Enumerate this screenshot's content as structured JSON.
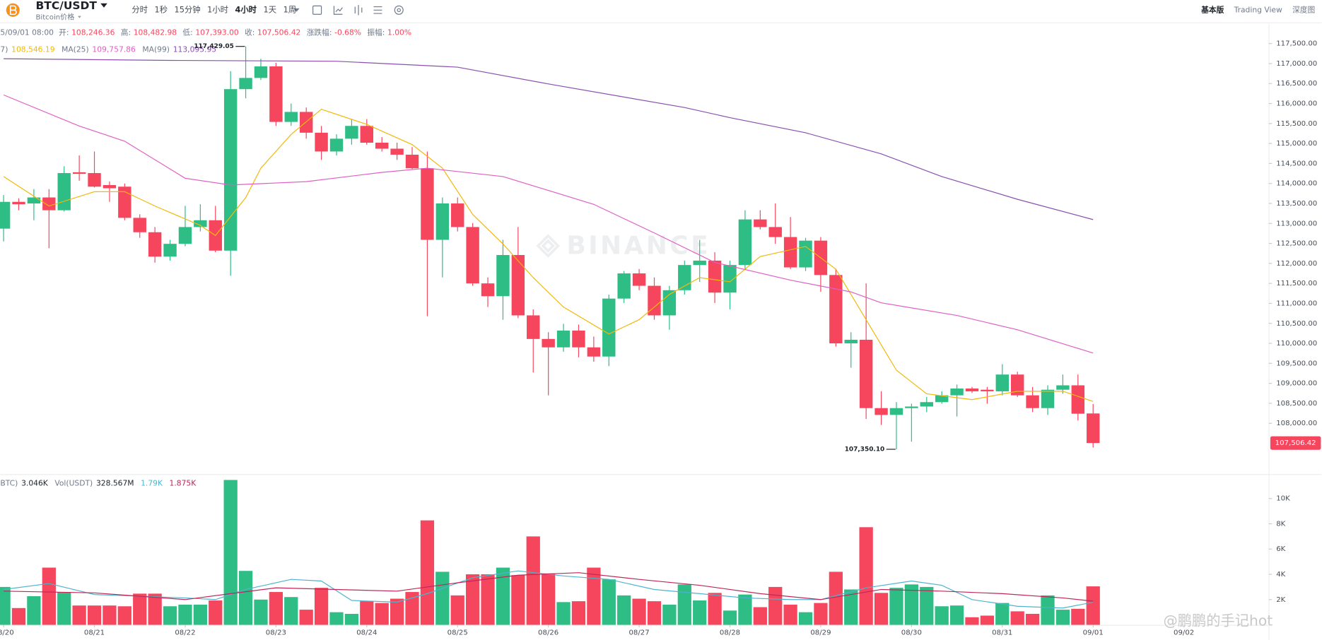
{
  "header": {
    "symbol": "BTC/USDT",
    "subtitle": "Bitcoin价格",
    "intervals": [
      "分时",
      "1秒",
      "15分钟",
      "1小时",
      "4小时",
      "1天",
      "1周"
    ],
    "active_interval": 4,
    "views": [
      "基本版",
      "Trading View",
      "深度图"
    ],
    "active_view": 0
  },
  "info": {
    "date": "5/09/01 08:00",
    "items": [
      {
        "label": "开:",
        "value": "108,246.36"
      },
      {
        "label": "高:",
        "value": "108,482.98"
      },
      {
        "label": "低:",
        "value": "107,393.00"
      },
      {
        "label": "收:",
        "value": "107,506.42"
      },
      {
        "label": "涨跌幅:",
        "value": "-0.68%"
      },
      {
        "label": "振幅:",
        "value": "1.00%"
      }
    ]
  },
  "watermark": "BINANCE",
  "credit": "@鹏鹏的手记hot",
  "chart_data": [
    {
      "type": "candlestick",
      "up_color": "#2ebd85",
      "down_color": "#f6465d",
      "open": [
        112870,
        113540,
        113500,
        113650,
        113330,
        114280,
        114260,
        113960,
        113920,
        113140,
        112780,
        112170,
        112490,
        112910,
        113080,
        112320,
        116360,
        116640,
        116930,
        115540,
        115790,
        115270,
        114800,
        115120,
        115440,
        115020,
        114870,
        114720,
        114380,
        112590,
        113500,
        112910,
        111500,
        111180,
        112210,
        110700,
        110110,
        109900,
        110320,
        109900,
        109670,
        111120,
        111750,
        111440,
        110700,
        111330,
        111960,
        112070,
        111270,
        111960,
        113100,
        112910,
        112660,
        111900,
        112570,
        111710,
        110000,
        110090,
        108380,
        108210,
        108380,
        108420,
        108530,
        108700,
        108870,
        108840,
        108800,
        109220,
        108700,
        108380,
        108840,
        108950,
        108246.36
      ],
      "high": [
        113710,
        113630,
        113860,
        113860,
        114430,
        114700,
        114800,
        114050,
        114000,
        113230,
        112910,
        112590,
        113440,
        113480,
        113440,
        116810,
        117429.05,
        117120,
        117020,
        116000,
        115900,
        115440,
        115230,
        115610,
        115610,
        115160,
        115020,
        114910,
        114800,
        113650,
        113650,
        113010,
        111650,
        112590,
        112910,
        110850,
        110280,
        110490,
        110470,
        110170,
        111220,
        111810,
        111860,
        111650,
        111440,
        112070,
        112590,
        112280,
        112070,
        113330,
        113330,
        113500,
        113160,
        112640,
        112660,
        111860,
        110280,
        111500,
        108800,
        108530,
        108490,
        108660,
        108800,
        108970,
        108910,
        108910,
        109480,
        109290,
        108910,
        108950,
        109220,
        109220,
        108482.98
      ],
      "low": [
        112550,
        113330,
        113080,
        112380,
        113300,
        114070,
        113900,
        113540,
        113080,
        112640,
        112020,
        112070,
        112430,
        112800,
        112280,
        111690,
        116130,
        116590,
        115440,
        115440,
        115120,
        114590,
        114700,
        114970,
        114970,
        114800,
        114590,
        114360,
        110680,
        111650,
        112800,
        111440,
        110910,
        110590,
        110630,
        109270,
        108700,
        109790,
        109650,
        109540,
        109430,
        111010,
        111330,
        110590,
        110340,
        111220,
        111540,
        111010,
        110850,
        111860,
        112850,
        112490,
        111860,
        111810,
        111290,
        109920,
        109390,
        108110,
        107960,
        107350.1,
        107540,
        108280,
        108490,
        108170,
        108760,
        108490,
        108700,
        108660,
        108280,
        108210,
        108740,
        108070,
        107393.0
      ],
      "close": [
        113540,
        113480,
        113650,
        113330,
        114260,
        114240,
        113920,
        113880,
        113140,
        112780,
        112170,
        112490,
        112910,
        113080,
        112320,
        116360,
        116640,
        116930,
        115540,
        115790,
        115270,
        114800,
        115120,
        115440,
        115020,
        114870,
        114720,
        114380,
        112590,
        113500,
        112910,
        111500,
        111180,
        112210,
        110700,
        110110,
        109900,
        110320,
        109900,
        109670,
        111120,
        111750,
        111440,
        110700,
        111330,
        111960,
        112070,
        111270,
        111960,
        113100,
        112910,
        112660,
        111900,
        112570,
        111710,
        110000,
        110090,
        108380,
        108210,
        108380,
        108420,
        108530,
        108700,
        108870,
        108800,
        108800,
        109220,
        108700,
        108380,
        108840,
        108950,
        108240,
        107506.42
      ],
      "ylim": [
        106750,
        118000
      ],
      "yticks": [
        {
          "value": 108000,
          "label": "108,000.00"
        },
        {
          "value": 108500,
          "label": "108,500.00"
        },
        {
          "value": 109000,
          "label": "109,000.00"
        },
        {
          "value": 109500,
          "label": "109,500.00"
        },
        {
          "value": 110000,
          "label": "110,000.00"
        },
        {
          "value": 110500,
          "label": "110,500.00"
        },
        {
          "value": 111000,
          "label": "111,000.00"
        },
        {
          "value": 111500,
          "label": "111,500.00"
        },
        {
          "value": 112000,
          "label": "112,000.00"
        },
        {
          "value": 112500,
          "label": "112,500.00"
        },
        {
          "value": 113000,
          "label": "113,000.00"
        },
        {
          "value": 113500,
          "label": "113,500.00"
        },
        {
          "value": 114000,
          "label": "114,000.00"
        },
        {
          "value": 114500,
          "label": "114,500.00"
        },
        {
          "value": 115000,
          "label": "115,000.00"
        },
        {
          "value": 115500,
          "label": "115,500.00"
        },
        {
          "value": 116000,
          "label": "116,000.00"
        },
        {
          "value": 116500,
          "label": "116,500.00"
        },
        {
          "value": 117000,
          "label": "117,000.00"
        },
        {
          "value": 117500,
          "label": "117,500.00"
        }
      ],
      "xlim": [
        -0.22,
        83.6
      ],
      "xticks": [
        {
          "value": 0,
          "label": "08/20"
        },
        {
          "value": 6,
          "label": "08/21"
        },
        {
          "value": 12,
          "label": "08/22"
        },
        {
          "value": 18,
          "label": "08/23"
        },
        {
          "value": 24,
          "label": "08/24"
        },
        {
          "value": 30,
          "label": "08/25"
        },
        {
          "value": 36,
          "label": "08/26"
        },
        {
          "value": 42,
          "label": "08/27"
        },
        {
          "value": 48,
          "label": "08/28"
        },
        {
          "value": 54,
          "label": "08/29"
        },
        {
          "value": 60,
          "label": "08/30"
        },
        {
          "value": 66,
          "label": "08/31"
        },
        {
          "value": 72,
          "label": "09/01"
        },
        {
          "value": 78,
          "label": "09/02"
        }
      ],
      "grid": false,
      "ma": [
        {
          "name": "7)",
          "color": "#f0b90b",
          "value_label": "108,546.19",
          "x": [
            0,
            3,
            6,
            8,
            10,
            13,
            14,
            16,
            17,
            19,
            21,
            24,
            27,
            29,
            31,
            33,
            35,
            37,
            40,
            42,
            44,
            46,
            48,
            50,
            53,
            55,
            57,
            59,
            61,
            64,
            67,
            70,
            72
          ],
          "values": [
            114173,
            113436,
            113794,
            113794,
            113436,
            112951,
            112698,
            113646,
            114383,
            115226,
            115857,
            115478,
            114973,
            114383,
            113225,
            112488,
            111645,
            110908,
            110234,
            110592,
            111224,
            111645,
            111540,
            112172,
            112425,
            111856,
            110592,
            109329,
            108739,
            108592,
            108802,
            108802,
            108546.19
          ]
        },
        {
          "name": "MA(25)",
          "color": "#e05fc4",
          "value_label": "109,757.86",
          "x": [
            0,
            5,
            8,
            12,
            15,
            20,
            25,
            28,
            33,
            39,
            43,
            47,
            52,
            56,
            58,
            63,
            67,
            72
          ],
          "values": [
            116215,
            115436,
            115057,
            114130,
            113962,
            114046,
            114278,
            114383,
            114173,
            113478,
            112762,
            112024,
            111582,
            111287,
            111014,
            110698,
            110340,
            109757.86
          ]
        },
        {
          "name": "MA(99)",
          "color": "#8a4fb0",
          "value_label": "113,095.95",
          "x": [
            0,
            11,
            22,
            30,
            36,
            45,
            48,
            53,
            58,
            62,
            67,
            72
          ],
          "values": [
            117121,
            117079,
            117058,
            116910,
            116490,
            115900,
            115647,
            115268,
            114741,
            114173,
            113604,
            113095.95
          ]
        }
      ],
      "annotations": [
        {
          "candle": 16,
          "value": 117429.05,
          "label": "117,429.05"
        },
        {
          "candle": 59,
          "value": 107350.1,
          "label": "107,350.10"
        }
      ],
      "last_price": {
        "value": 107506.42,
        "label": "107,506.42"
      }
    },
    {
      "type": "bar",
      "values": [
        3000,
        1330,
        2270,
        4530,
        2600,
        1530,
        1530,
        1530,
        1470,
        2470,
        2470,
        1470,
        1600,
        1600,
        1930,
        11470,
        4270,
        2000,
        2600,
        2200,
        1200,
        2930,
        1000,
        870,
        1870,
        1730,
        2070,
        2600,
        8270,
        4200,
        2330,
        4000,
        4000,
        4530,
        3930,
        7000,
        4070,
        1800,
        1870,
        4530,
        3600,
        2330,
        2070,
        1870,
        1600,
        3200,
        1930,
        2530,
        1130,
        2400,
        1400,
        3000,
        1600,
        1000,
        1730,
        4200,
        2800,
        7730,
        2530,
        2930,
        3200,
        3000,
        1470,
        1530,
        600,
        730,
        1730,
        1070,
        870,
        2330,
        1200,
        1270,
        3046
      ],
      "ylim": [
        0,
        11800
      ],
      "yticks": [
        {
          "value": 2000,
          "label": "2K"
        },
        {
          "value": 4000,
          "label": "4K"
        },
        {
          "value": 6000,
          "label": "6K"
        },
        {
          "value": 8000,
          "label": "8K"
        },
        {
          "value": 10000,
          "label": "10K"
        }
      ],
      "legend": [
        {
          "name": "BTC)",
          "value": "3.046K"
        },
        {
          "name": "Vol(USDT)",
          "value": "328.567M"
        }
      ],
      "series": [
        {
          "color": "#4fb3cf",
          "value_label": "1.79K",
          "x": [
            0,
            3,
            6,
            9,
            12,
            14,
            16,
            19,
            21,
            23,
            26,
            28,
            31,
            34,
            37,
            40,
            43,
            46,
            49,
            52,
            54,
            57,
            60,
            62,
            64,
            67,
            70,
            72
          ],
          "values": [
            2800,
            3270,
            2400,
            2270,
            2130,
            2000,
            2800,
            3600,
            3470,
            1930,
            1800,
            2470,
            3730,
            4270,
            3870,
            3600,
            2800,
            2470,
            2130,
            2000,
            2000,
            2930,
            3470,
            3130,
            2000,
            1470,
            1330,
            1790
          ]
        },
        {
          "color": "#c0265a",
          "value_label": "1.875K",
          "x": [
            0,
            6,
            12,
            15,
            18,
            22,
            26,
            30,
            34,
            38,
            42,
            46,
            50,
            54,
            58,
            62,
            66,
            70,
            72
          ],
          "values": [
            2670,
            2530,
            2000,
            2470,
            2930,
            2800,
            2670,
            3330,
            3930,
            4130,
            3600,
            3130,
            2470,
            2000,
            2800,
            2670,
            2470,
            2130,
            1875
          ]
        }
      ]
    }
  ]
}
